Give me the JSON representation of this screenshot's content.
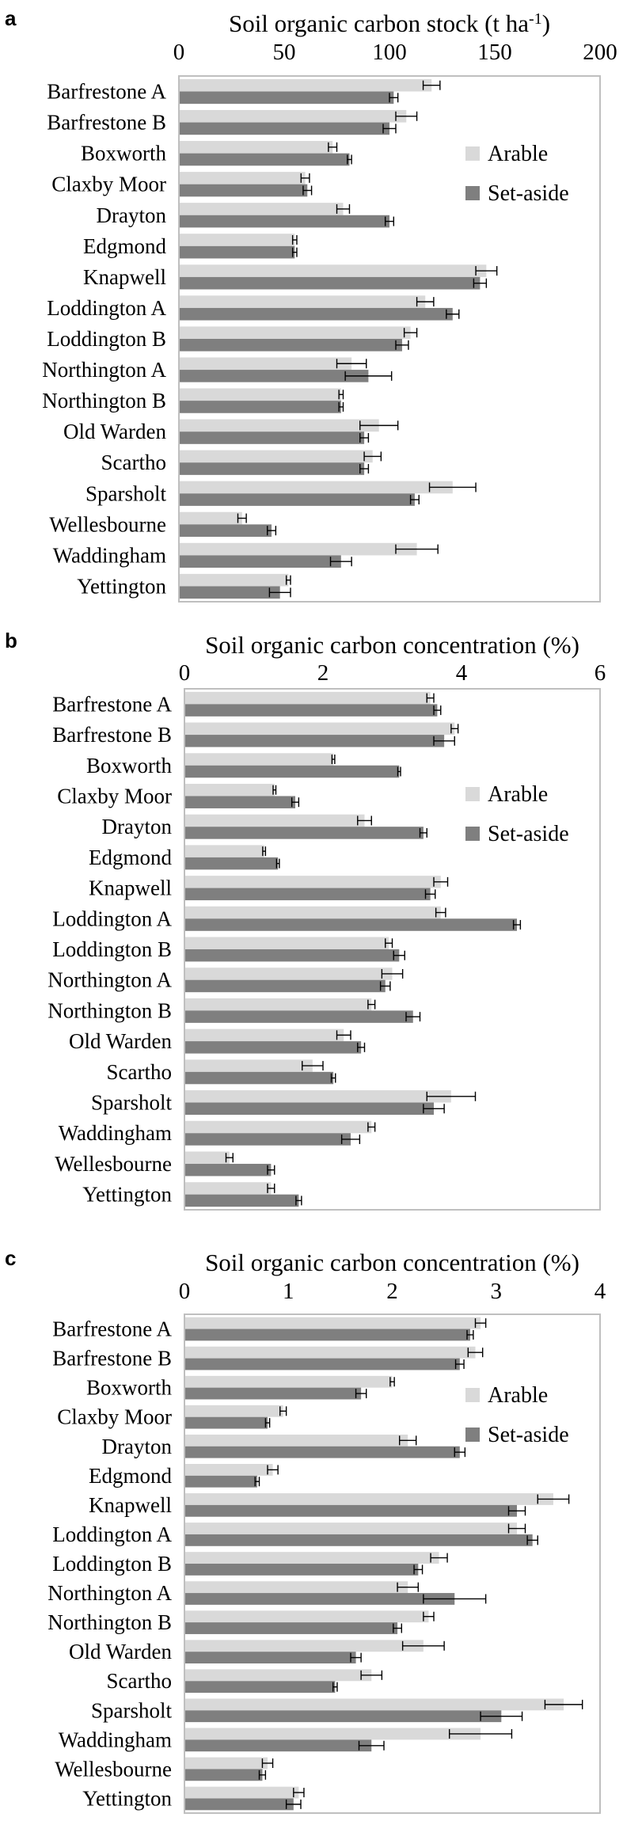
{
  "colors": {
    "arable": "#d9d9d9",
    "set_aside": "#7f7f7f",
    "frame": "#bfbfbf",
    "error": "#000000"
  },
  "chart_data": [
    {
      "panel_label": "a",
      "type": "bar",
      "orientation": "horizontal",
      "title": "Soil organic carbon stock (t ha",
      "title_sup": "-1",
      "title_tail": ")",
      "xlim": [
        0,
        200
      ],
      "ticks": [
        "0",
        "50",
        "100",
        "150",
        "200"
      ],
      "tick_values": [
        0,
        50,
        100,
        150,
        200
      ],
      "legend_position": "right",
      "categories": [
        "Barfrestone A",
        "Barfrestone B",
        "Boxworth",
        "Claxby Moor",
        "Drayton",
        "Edgmond",
        "Knapwell",
        "Loddington A",
        "Loddington B",
        "Northington A",
        "Northington B",
        "Old Warden",
        "Scartho",
        "Sparsholt",
        "Wellesbourne",
        "Waddingham",
        "Yettington"
      ],
      "series": [
        {
          "name": "Arable",
          "values": [
            120,
            108,
            73,
            60,
            78,
            55,
            146,
            117,
            110,
            82,
            77,
            95,
            92,
            130,
            30,
            113,
            52
          ],
          "errors": [
            4,
            5,
            2,
            2,
            3,
            1,
            5,
            4,
            3,
            7,
            1,
            9,
            4,
            11,
            2,
            10,
            1
          ]
        },
        {
          "name": "Set-aside",
          "values": [
            102,
            100,
            81,
            61,
            100,
            55,
            143,
            130,
            106,
            90,
            77,
            88,
            88,
            112,
            44,
            77,
            48
          ],
          "errors": [
            2,
            3,
            1,
            2,
            2,
            1,
            3,
            3,
            3,
            11,
            1,
            2,
            2,
            2,
            2,
            5,
            5
          ]
        }
      ]
    },
    {
      "panel_label": "b",
      "type": "bar",
      "orientation": "horizontal",
      "title": "Soil organic carbon concentration (%)",
      "title_sup": "",
      "title_tail": "",
      "xlim": [
        0,
        6
      ],
      "ticks": [
        "0",
        "2",
        "4",
        "6"
      ],
      "tick_values": [
        0,
        2,
        4,
        6
      ],
      "legend_position": "right",
      "categories": [
        "Barfrestone A",
        "Barfrestone B",
        "Boxworth",
        "Claxby Moor",
        "Drayton",
        "Edgmond",
        "Knapwell",
        "Loddington A",
        "Loddington B",
        "Northington A",
        "Northington B",
        "Old Warden",
        "Scartho",
        "Sparsholt",
        "Waddingham",
        "Wellesbourne",
        "Yettington"
      ],
      "series": [
        {
          "name": "Arable",
          "values": [
            3.55,
            3.9,
            2.15,
            1.3,
            2.6,
            1.15,
            3.7,
            3.7,
            2.95,
            3.0,
            2.7,
            2.3,
            1.85,
            3.85,
            2.7,
            0.65,
            1.25
          ],
          "errors": [
            0.05,
            0.05,
            0.02,
            0.02,
            0.1,
            0.02,
            0.1,
            0.07,
            0.05,
            0.15,
            0.05,
            0.1,
            0.15,
            0.35,
            0.05,
            0.05,
            0.05
          ]
        },
        {
          "name": "Set-aside",
          "values": [
            3.65,
            3.75,
            3.1,
            1.6,
            3.45,
            1.35,
            3.55,
            4.8,
            3.1,
            2.9,
            3.3,
            2.55,
            2.15,
            3.6,
            2.4,
            1.25,
            1.65
          ],
          "errors": [
            0.05,
            0.15,
            0.02,
            0.05,
            0.05,
            0.02,
            0.07,
            0.05,
            0.08,
            0.07,
            0.1,
            0.05,
            0.03,
            0.15,
            0.13,
            0.05,
            0.04
          ]
        }
      ]
    },
    {
      "panel_label": "c",
      "type": "bar",
      "orientation": "horizontal",
      "title": "Soil organic carbon concentration (%)",
      "title_sup": "",
      "title_tail": "",
      "xlim": [
        0,
        4
      ],
      "ticks": [
        "0",
        "1",
        "2",
        "3",
        "4"
      ],
      "tick_values": [
        0,
        1,
        2,
        3,
        4
      ],
      "legend_position": "right",
      "categories": [
        "Barfrestone A",
        "Barfrestone B",
        "Boxworth",
        "Claxby Moor",
        "Drayton",
        "Edgmond",
        "Knapwell",
        "Loddington A",
        "Loddington B",
        "Northington A",
        "Northington B",
        "Old Warden",
        "Scartho",
        "Sparsholt",
        "Waddingham",
        "Wellesbourne",
        "Yettington"
      ],
      "series": [
        {
          "name": "Arable",
          "values": [
            2.85,
            2.8,
            2.0,
            0.95,
            2.15,
            0.85,
            3.55,
            3.2,
            2.45,
            2.15,
            2.35,
            2.3,
            1.8,
            3.65,
            2.85,
            0.8,
            1.1
          ],
          "errors": [
            0.05,
            0.07,
            0.02,
            0.03,
            0.08,
            0.05,
            0.15,
            0.08,
            0.08,
            0.1,
            0.05,
            0.2,
            0.1,
            0.18,
            0.3,
            0.05,
            0.05
          ]
        },
        {
          "name": "Set-aside",
          "values": [
            2.75,
            2.65,
            1.7,
            0.8,
            2.65,
            0.7,
            3.2,
            3.35,
            2.25,
            2.6,
            2.05,
            1.65,
            1.45,
            3.05,
            1.8,
            0.75,
            1.05
          ],
          "errors": [
            0.03,
            0.04,
            0.05,
            0.02,
            0.05,
            0.02,
            0.08,
            0.05,
            0.04,
            0.3,
            0.04,
            0.05,
            0.02,
            0.2,
            0.12,
            0.03,
            0.07
          ]
        }
      ]
    }
  ]
}
